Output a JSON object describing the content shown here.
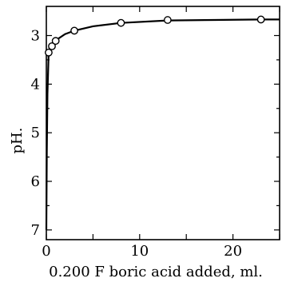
{
  "chart_data": {
    "type": "line",
    "xlabel": "0.200 F boric acid added, ml.",
    "ylabel": "pH.",
    "xlim": [
      0,
      25
    ],
    "ylim": [
      7.2,
      2.4
    ],
    "y_inverted": true,
    "grid": false,
    "x_ticks": [
      0,
      10,
      20
    ],
    "y_ticks": [
      3,
      4,
      5,
      6,
      7
    ],
    "series": [
      {
        "points": [
          {
            "x": 0.25,
            "y": 3.35
          },
          {
            "x": 0.6,
            "y": 3.22
          },
          {
            "x": 1.0,
            "y": 3.11
          },
          {
            "x": 3.0,
            "y": 2.9
          },
          {
            "x": 8.0,
            "y": 2.74
          },
          {
            "x": 13.0,
            "y": 2.68
          },
          {
            "x": 23.0,
            "y": 2.67
          }
        ],
        "curve": [
          {
            "x": 0.0,
            "y": 7.0
          },
          {
            "x": 0.05,
            "y": 5.4
          },
          {
            "x": 0.12,
            "y": 4.2
          },
          {
            "x": 0.25,
            "y": 3.35
          },
          {
            "x": 0.6,
            "y": 3.2
          },
          {
            "x": 1.0,
            "y": 3.1
          },
          {
            "x": 2.0,
            "y": 2.97
          },
          {
            "x": 3.0,
            "y": 2.9
          },
          {
            "x": 5.0,
            "y": 2.81
          },
          {
            "x": 8.0,
            "y": 2.74
          },
          {
            "x": 13.0,
            "y": 2.69
          },
          {
            "x": 18.0,
            "y": 2.68
          },
          {
            "x": 23.0,
            "y": 2.67
          },
          {
            "x": 25.0,
            "y": 2.67
          }
        ]
      }
    ]
  }
}
